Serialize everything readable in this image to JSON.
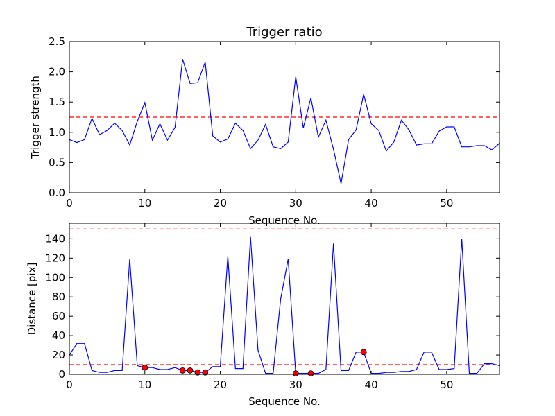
{
  "chart_data": [
    {
      "type": "line",
      "title": "Trigger ratio",
      "xlabel": "Sequence No.",
      "ylabel": "Trigger strength",
      "xlim": [
        0,
        57
      ],
      "ylim": [
        0,
        2.5
      ],
      "xticks": [
        "0",
        "10",
        "20",
        "30",
        "40",
        "50"
      ],
      "yticks": [
        "0.0",
        "0.5",
        "1.0",
        "1.5",
        "2.0",
        "2.5"
      ],
      "grid": false,
      "line_color": "#0000ff",
      "threshold": 1.25,
      "threshold_color": "#ff0000",
      "series": [
        {
          "x": [
            0,
            1,
            2,
            3,
            4,
            5,
            6,
            7,
            8,
            9,
            10,
            11,
            12,
            13,
            14,
            15,
            16,
            17,
            18,
            19,
            20,
            21,
            22,
            23,
            24,
            25,
            26,
            27,
            28,
            29,
            30,
            31,
            32,
            33,
            34,
            35,
            36,
            37,
            38,
            39,
            40,
            41,
            42,
            43,
            44,
            45,
            46,
            47,
            48,
            49,
            50,
            51,
            52,
            53,
            54,
            55,
            56,
            57
          ],
          "values": [
            0.88,
            0.83,
            0.88,
            1.23,
            0.96,
            1.03,
            1.15,
            1.03,
            0.79,
            1.18,
            1.49,
            0.87,
            1.14,
            0.87,
            1.08,
            2.21,
            1.81,
            1.82,
            2.16,
            0.94,
            0.84,
            0.89,
            1.15,
            1.03,
            0.73,
            0.87,
            1.13,
            0.76,
            0.73,
            0.84,
            1.92,
            1.07,
            1.57,
            0.92,
            1.2,
            0.72,
            0.15,
            0.88,
            1.04,
            1.63,
            1.14,
            1.03,
            0.69,
            0.84,
            1.2,
            1.04,
            0.79,
            0.81,
            0.81,
            1.02,
            1.09,
            1.09,
            0.76,
            0.76,
            0.78,
            0.78,
            0.71,
            0.82
          ]
        }
      ]
    },
    {
      "type": "line",
      "title": "",
      "xlabel": "Sequence No.",
      "ylabel": "Distance [pix]",
      "xlim": [
        0,
        57
      ],
      "ylim": [
        0,
        156
      ],
      "xticks": [
        "0",
        "10",
        "20",
        "30",
        "40",
        "50"
      ],
      "yticks": [
        "0",
        "20",
        "40",
        "60",
        "80",
        "100",
        "120",
        "140"
      ],
      "grid": false,
      "line_color": "#0000ff",
      "thresholds": [
        10,
        150
      ],
      "threshold_color": "#ff0000",
      "series": [
        {
          "x": [
            0,
            1,
            2,
            3,
            4,
            5,
            6,
            7,
            8,
            9,
            10,
            11,
            12,
            13,
            14,
            15,
            16,
            17,
            18,
            19,
            20,
            21,
            22,
            23,
            24,
            25,
            26,
            27,
            28,
            29,
            30,
            31,
            32,
            33,
            34,
            35,
            36,
            37,
            38,
            39,
            40,
            41,
            42,
            43,
            44,
            45,
            46,
            47,
            48,
            49,
            50,
            51,
            52,
            53,
            54,
            55,
            56,
            57
          ],
          "values": [
            20,
            32,
            32,
            4,
            2,
            2,
            4,
            4,
            119,
            9,
            7,
            7,
            5,
            5,
            7,
            4,
            4,
            2,
            2,
            8,
            8,
            122,
            6,
            6,
            142,
            25,
            1,
            1,
            78,
            119,
            1,
            1,
            1,
            1,
            5,
            135,
            4,
            4,
            23,
            23,
            1,
            1,
            2,
            2,
            3,
            3,
            5,
            23,
            23,
            5,
            5,
            6,
            140,
            1,
            1,
            11,
            11,
            9
          ]
        }
      ],
      "markers": {
        "color": "#ff0000",
        "x": [
          10,
          15,
          16,
          17,
          18,
          30,
          32,
          39
        ],
        "values": [
          7,
          4,
          4,
          2,
          2,
          1,
          1,
          23
        ]
      }
    }
  ]
}
